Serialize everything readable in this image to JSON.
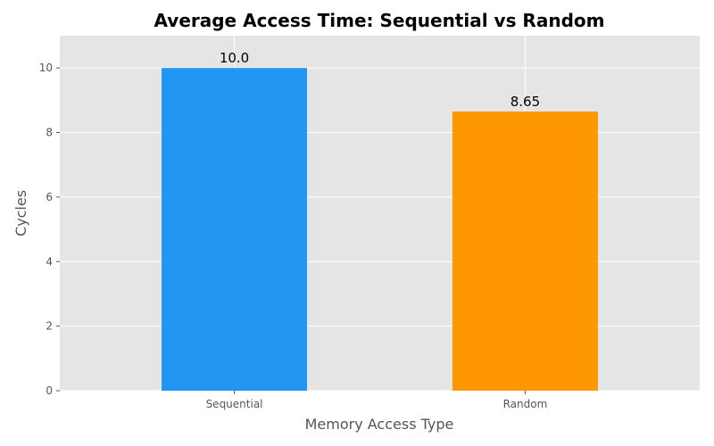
{
  "chart_data": {
    "type": "bar",
    "title": "Average Access Time: Sequential vs Random",
    "xlabel": "Memory Access Type",
    "ylabel": "Cycles",
    "categories": [
      "Sequential",
      "Random"
    ],
    "values": [
      10.0,
      8.65
    ],
    "data_labels": [
      "10.0",
      "8.65"
    ],
    "colors": [
      "#2196F3",
      "#FF9800"
    ],
    "ylim": [
      0,
      11
    ],
    "yticks": [
      0,
      2,
      4,
      6,
      8,
      10
    ],
    "grid": true,
    "background": "#E5E5E5"
  }
}
